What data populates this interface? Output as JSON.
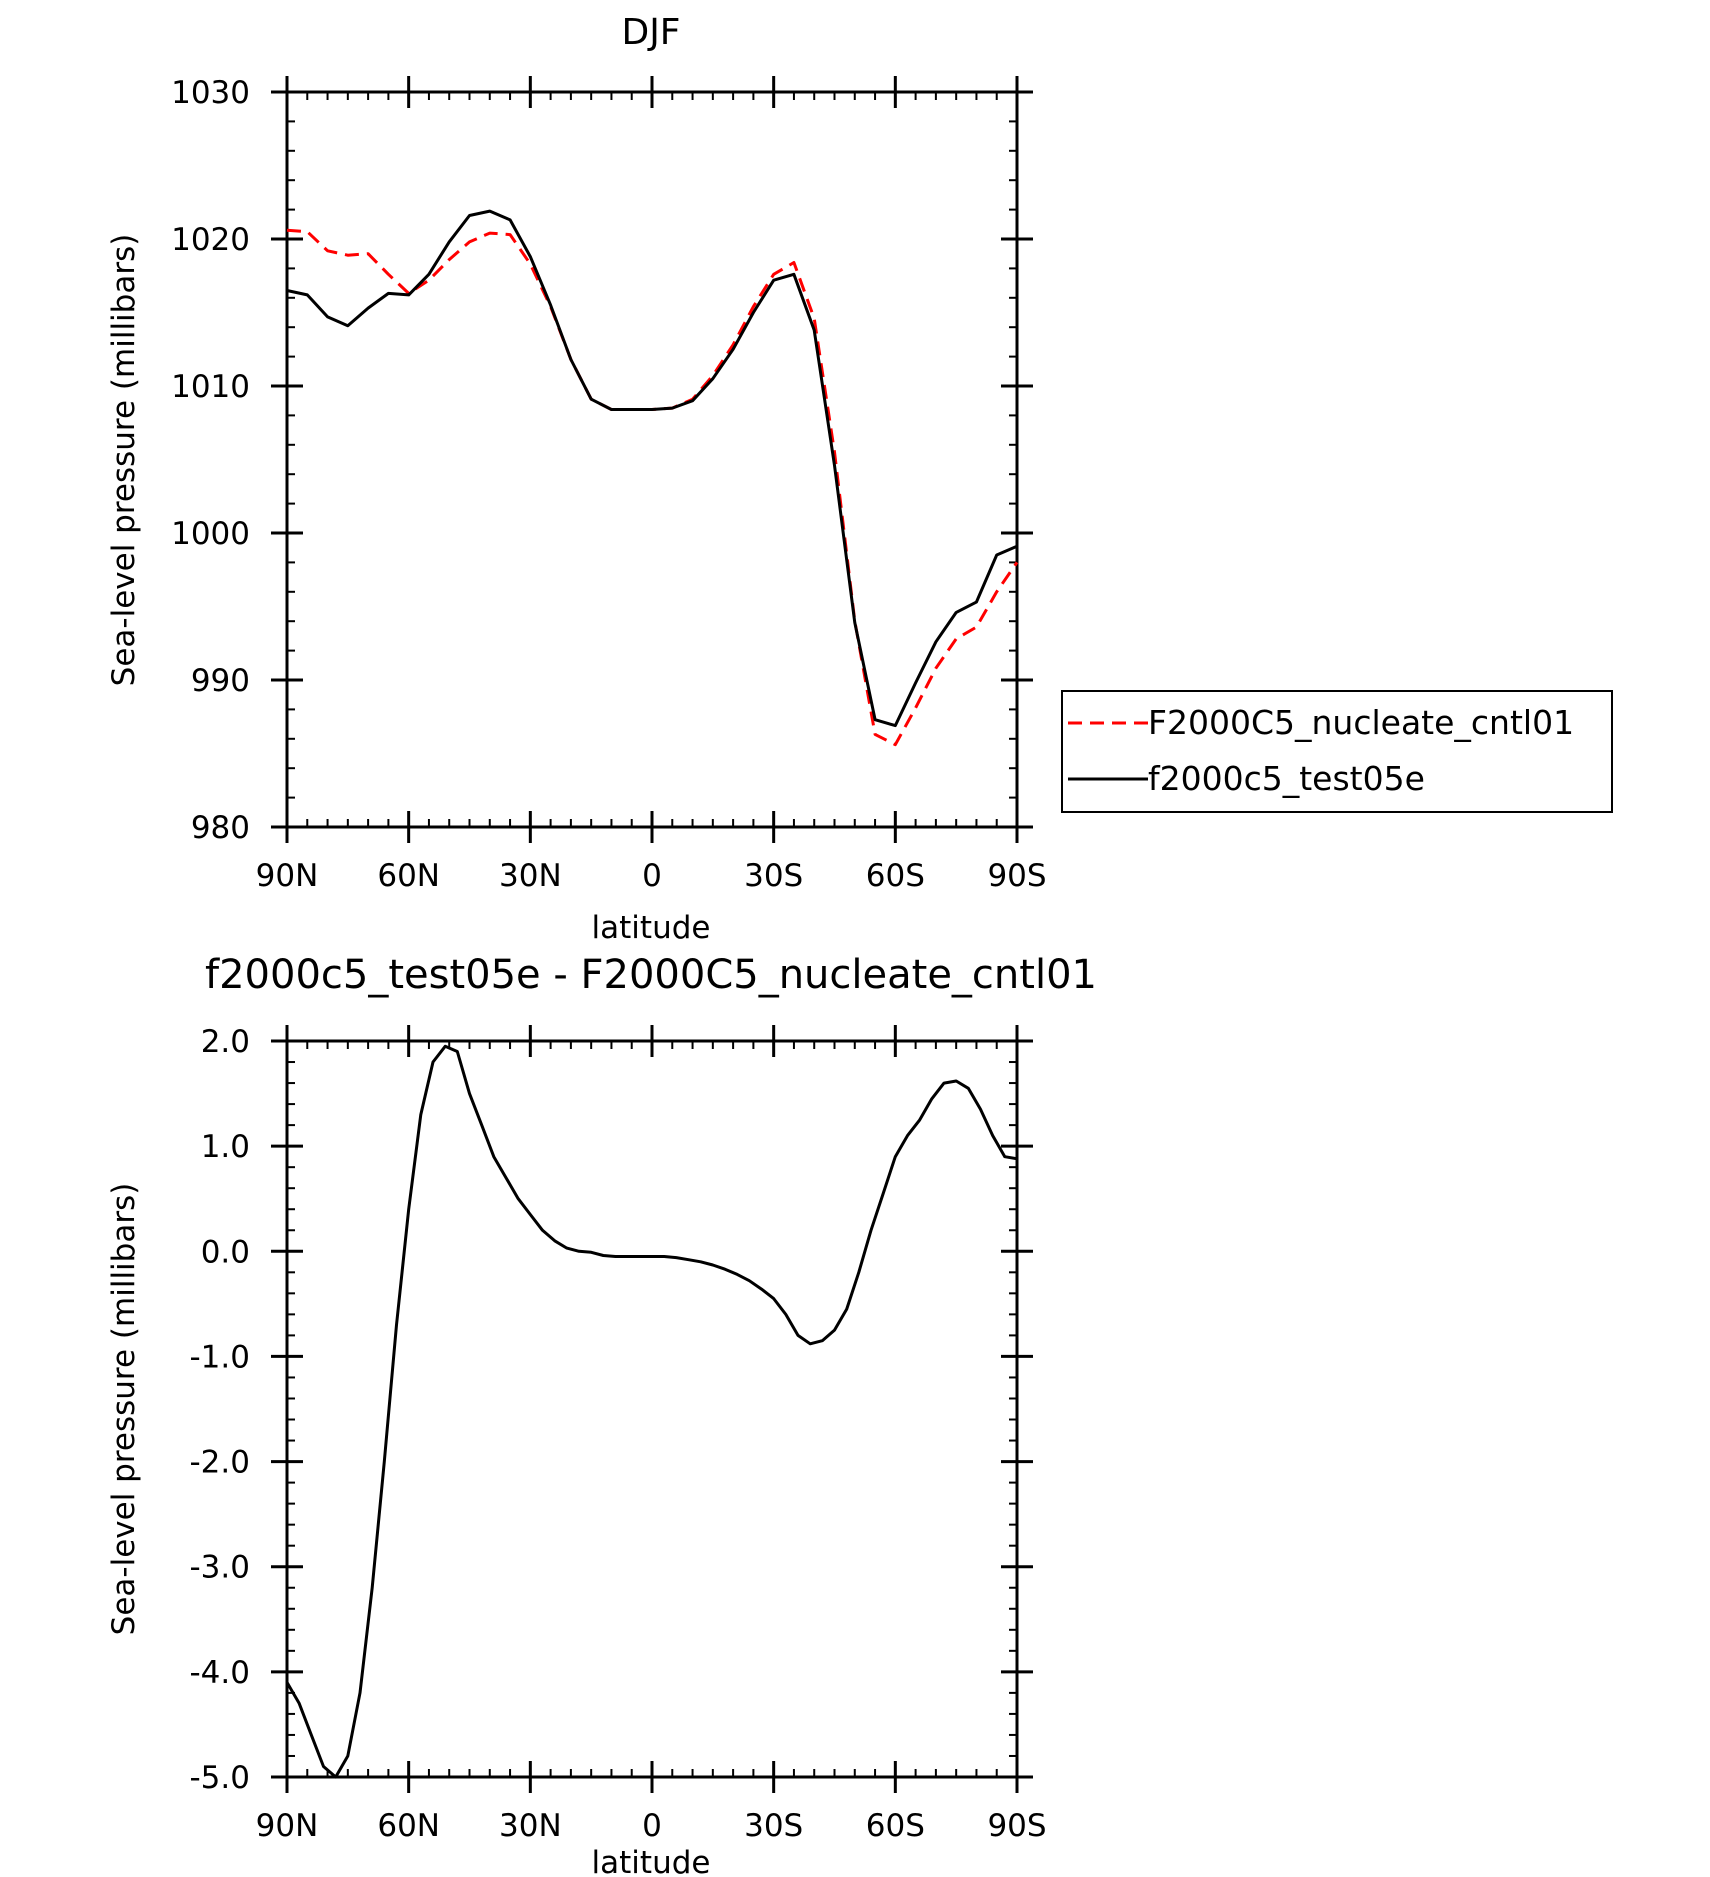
{
  "chart_data": [
    {
      "type": "line",
      "title": "DJF",
      "xlabel": "latitude",
      "ylabel": "Sea-level pressure (millibars)",
      "xlim": [
        90,
        -90
      ],
      "ylim": [
        980,
        1030
      ],
      "xticks": [
        {
          "value": 90,
          "label": "90N"
        },
        {
          "value": 60,
          "label": "60N"
        },
        {
          "value": 30,
          "label": "30N"
        },
        {
          "value": 0,
          "label": "0"
        },
        {
          "value": -30,
          "label": "30S"
        },
        {
          "value": -60,
          "label": "60S"
        },
        {
          "value": -90,
          "label": "90S"
        }
      ],
      "yticks": [
        {
          "value": 980,
          "label": "980"
        },
        {
          "value": 990,
          "label": "990"
        },
        {
          "value": 1000,
          "label": "1000"
        },
        {
          "value": 1010,
          "label": "1010"
        },
        {
          "value": 1020,
          "label": "1020"
        },
        {
          "value": 1030,
          "label": "1030"
        }
      ],
      "legend": {
        "placement": "right"
      },
      "x": [
        90,
        85,
        80,
        75,
        70,
        65,
        60,
        55,
        50,
        45,
        40,
        35,
        30,
        25,
        20,
        15,
        10,
        5,
        0,
        -5,
        -10,
        -15,
        -20,
        -25,
        -30,
        -35,
        -40,
        -45,
        -50,
        -55,
        -60,
        -65,
        -70,
        -75,
        -80,
        -85,
        -90
      ],
      "series": [
        {
          "name": "F2000C5_nucleate_cntl01",
          "color": "#ff0000",
          "dash": "dashed",
          "values": [
            1020.6,
            1020.5,
            1019.2,
            1018.9,
            1019.0,
            1017.6,
            1016.3,
            1017.2,
            1018.6,
            1019.8,
            1020.4,
            1020.3,
            1018.3,
            1015.4,
            1011.8,
            1009.1,
            1008.4,
            1008.4,
            1008.4,
            1008.5,
            1009.1,
            1010.7,
            1012.8,
            1015.4,
            1017.6,
            1018.4,
            1014.6,
            1005.5,
            994.0,
            986.3,
            985.6,
            988.1,
            990.8,
            992.8,
            993.6,
            996.0,
            998.0
          ]
        },
        {
          "name": "f2000c5_test05e",
          "color": "#000000",
          "dash": "solid",
          "values": [
            1016.5,
            1016.2,
            1014.7,
            1014.1,
            1015.3,
            1016.3,
            1016.2,
            1017.6,
            1019.8,
            1021.6,
            1021.9,
            1021.3,
            1018.8,
            1015.5,
            1011.8,
            1009.1,
            1008.4,
            1008.4,
            1008.4,
            1008.5,
            1009.0,
            1010.5,
            1012.5,
            1015.0,
            1017.2,
            1017.6,
            1013.8,
            1004.6,
            993.9,
            987.3,
            986.9,
            989.8,
            992.6,
            994.6,
            995.3,
            998.5,
            999.1
          ]
        }
      ]
    },
    {
      "type": "line",
      "title": "f2000c5_test05e - F2000C5_nucleate_cntl01",
      "xlabel": "latitude",
      "ylabel": "Sea-level pressure (millibars)",
      "xlim": [
        90,
        -90
      ],
      "ylim": [
        -5,
        2
      ],
      "xticks": [
        {
          "value": 90,
          "label": "90N"
        },
        {
          "value": 60,
          "label": "60N"
        },
        {
          "value": 30,
          "label": "30N"
        },
        {
          "value": 0,
          "label": "0"
        },
        {
          "value": -30,
          "label": "30S"
        },
        {
          "value": -60,
          "label": "60S"
        },
        {
          "value": -90,
          "label": "90S"
        }
      ],
      "yticks": [
        {
          "value": 2,
          "label": "2.0"
        },
        {
          "value": 1,
          "label": "1.0"
        },
        {
          "value": 0,
          "label": "0.0"
        },
        {
          "value": -1,
          "label": "-1.0"
        },
        {
          "value": -2,
          "label": "-2.0"
        },
        {
          "value": -3,
          "label": "-3.0"
        },
        {
          "value": -4,
          "label": "-4.0"
        },
        {
          "value": -5,
          "label": "-5.0"
        }
      ],
      "x": [
        90,
        87,
        84,
        81,
        78,
        75,
        72,
        69,
        66,
        63,
        60,
        57,
        54,
        51,
        48,
        45,
        42,
        39,
        36,
        33,
        30,
        27,
        24,
        21,
        18,
        15,
        12,
        9,
        6,
        3,
        0,
        -3,
        -6,
        -9,
        -12,
        -15,
        -18,
        -21,
        -24,
        -27,
        -30,
        -33,
        -36,
        -39,
        -42,
        -45,
        -48,
        -51,
        -54,
        -57,
        -60,
        -63,
        -66,
        -69,
        -72,
        -75,
        -78,
        -81,
        -84,
        -87,
        -90
      ],
      "series": [
        {
          "name": "",
          "color": "#000000",
          "dash": "solid",
          "values": [
            -4.1,
            -4.3,
            -4.6,
            -4.9,
            -5.0,
            -4.8,
            -4.2,
            -3.2,
            -2.0,
            -0.7,
            0.4,
            1.3,
            1.8,
            1.95,
            1.9,
            1.5,
            1.2,
            0.9,
            0.7,
            0.5,
            0.35,
            0.2,
            0.1,
            0.03,
            0.0,
            -0.01,
            -0.04,
            -0.05,
            -0.05,
            -0.05,
            -0.05,
            -0.05,
            -0.06,
            -0.08,
            -0.1,
            -0.13,
            -0.17,
            -0.22,
            -0.28,
            -0.36,
            -0.45,
            -0.6,
            -0.8,
            -0.88,
            -0.85,
            -0.75,
            -0.55,
            -0.2,
            0.2,
            0.55,
            0.9,
            1.1,
            1.25,
            1.45,
            1.6,
            1.62,
            1.55,
            1.35,
            1.1,
            0.9,
            0.88
          ]
        }
      ]
    }
  ]
}
